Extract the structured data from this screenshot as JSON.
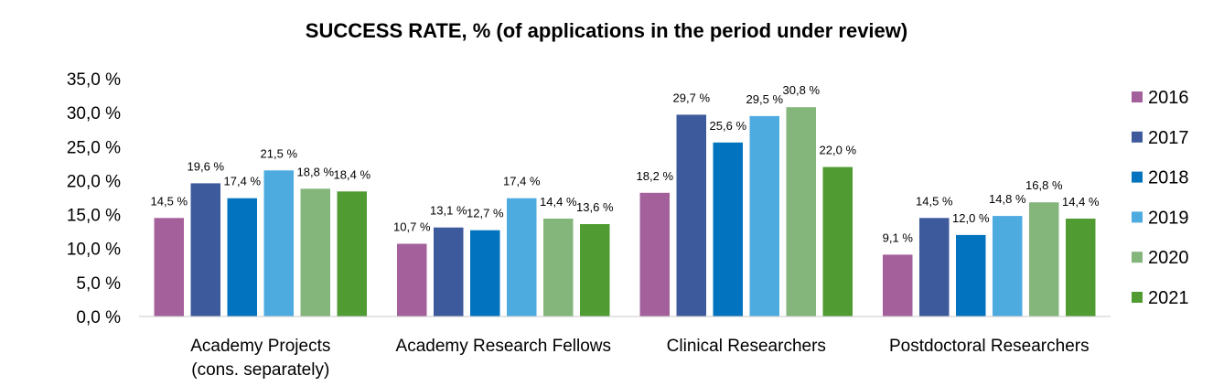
{
  "chart_data": {
    "type": "bar",
    "title": "SUCCESS RATE, % (of applications in the period under review)",
    "categories": [
      [
        "Academy Projects",
        "(cons. separately)"
      ],
      [
        "Academy Research Fellows"
      ],
      [
        "Clinical Researchers"
      ],
      [
        "Postdoctoral Researchers"
      ]
    ],
    "series": [
      {
        "name": "2016",
        "color": "#a4609b",
        "values": [
          14.5,
          10.7,
          18.2,
          9.1
        ],
        "labels": [
          "14,5 %",
          "10,7 %",
          "18,2 %",
          "9,1 %"
        ]
      },
      {
        "name": "2017",
        "color": "#3d5a9c",
        "values": [
          19.6,
          13.1,
          29.7,
          14.5
        ],
        "labels": [
          "19,6 %",
          "13,1 %",
          "29,7 %",
          "14,5 %"
        ]
      },
      {
        "name": "2018",
        "color": "#0273be",
        "values": [
          17.4,
          12.7,
          25.6,
          12.0
        ],
        "labels": [
          "17,4 %",
          "12,7 %",
          "25,6 %",
          "12,0 %"
        ]
      },
      {
        "name": "2019",
        "color": "#4eabe0",
        "values": [
          21.5,
          17.4,
          29.5,
          14.8
        ],
        "labels": [
          "21,5 %",
          "17,4 %",
          "29,5 %",
          "14,8 %"
        ]
      },
      {
        "name": "2020",
        "color": "#84b67c",
        "values": [
          18.8,
          14.4,
          30.8,
          16.8
        ],
        "labels": [
          "18,8 %",
          "14,4 %",
          "30,8 %",
          "16,8 %"
        ]
      },
      {
        "name": "2021",
        "color": "#509c33",
        "values": [
          18.4,
          13.6,
          22.0,
          14.4
        ],
        "labels": [
          "18,4 %",
          "13,6 %",
          "22,0 %",
          "14,4 %"
        ]
      }
    ],
    "ylim": [
      0,
      35
    ],
    "yticks": [
      0,
      5,
      10,
      15,
      20,
      25,
      30,
      35
    ],
    "ytick_labels": [
      "0,0 %",
      "5,0 %",
      "10,0 %",
      "15,0 %",
      "20,0 %",
      "25,0 %",
      "30,0 %",
      "35,0 %"
    ],
    "xlabel": "",
    "ylabel": "",
    "grid": false,
    "legend_position": "right"
  }
}
